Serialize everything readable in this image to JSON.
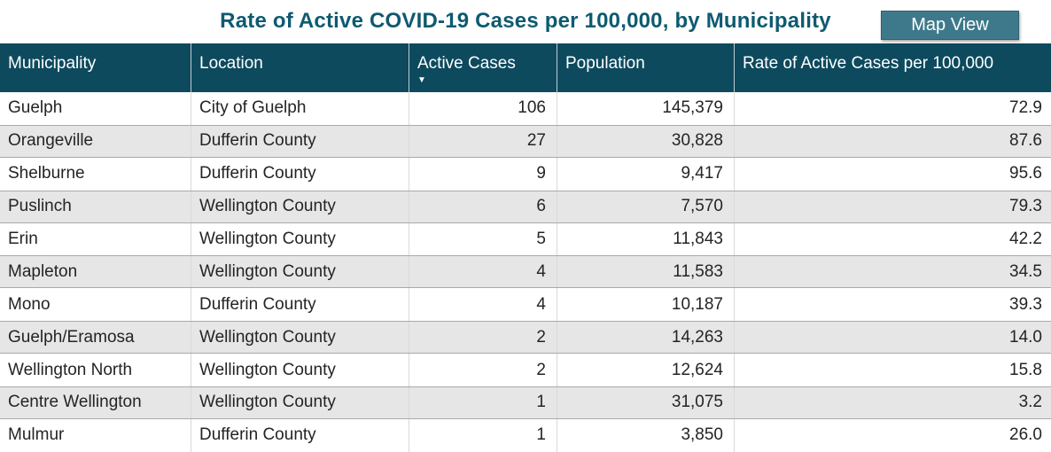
{
  "title": "Rate of Active COVID-19 Cases per 100,000, by Municipality",
  "map_view": {
    "label": "Map View"
  },
  "table": {
    "columns": [
      "Municipality",
      "Location",
      "Active Cases",
      "Population",
      "Rate of Active Cases per 100,000"
    ],
    "sorted_column": "Active Cases",
    "sort_direction": "descending",
    "sort_icon": "▼",
    "rows": [
      {
        "municipality": "Guelph",
        "location": "City of Guelph",
        "active_cases": "106",
        "population": "145,379",
        "rate": "72.9"
      },
      {
        "municipality": "Orangeville",
        "location": "Dufferin County",
        "active_cases": "27",
        "population": "30,828",
        "rate": "87.6"
      },
      {
        "municipality": "Shelburne",
        "location": "Dufferin County",
        "active_cases": "9",
        "population": "9,417",
        "rate": "95.6"
      },
      {
        "municipality": "Puslinch",
        "location": "Wellington County",
        "active_cases": "6",
        "population": "7,570",
        "rate": "79.3"
      },
      {
        "municipality": "Erin",
        "location": "Wellington County",
        "active_cases": "5",
        "population": "11,843",
        "rate": "42.2"
      },
      {
        "municipality": "Mapleton",
        "location": "Wellington County",
        "active_cases": "4",
        "population": "11,583",
        "rate": "34.5"
      },
      {
        "municipality": "Mono",
        "location": "Dufferin County",
        "active_cases": "4",
        "population": "10,187",
        "rate": "39.3"
      },
      {
        "municipality": "Guelph/Eramosa",
        "location": "Wellington County",
        "active_cases": "2",
        "population": "14,263",
        "rate": "14.0"
      },
      {
        "municipality": "Wellington North",
        "location": "Wellington County",
        "active_cases": "2",
        "population": "12,624",
        "rate": "15.8"
      },
      {
        "municipality": "Centre Wellington",
        "location": "Wellington County",
        "active_cases": "1",
        "population": "31,075",
        "rate": "3.2"
      },
      {
        "municipality": "Mulmur",
        "location": "Dufferin County",
        "active_cases": "1",
        "population": "3,850",
        "rate": "26.0"
      }
    ]
  },
  "colors": {
    "header_bg": "#0d4a5e",
    "header_text": "#ffffff",
    "title_text": "#0e5a70",
    "button_bg": "#3e798b",
    "button_border": "#2e606f",
    "button_text": "#ffffff",
    "row_alt_bg": "#e6e6e6",
    "row_border": "#a9a9a9",
    "col_separator": "#d9d9d9",
    "cell_text": "#252423",
    "canvas_bg": "#ffffff"
  },
  "chart_data": {
    "type": "table",
    "title": "Rate of Active COVID-19 Cases per 100,000, by Municipality",
    "columns": [
      "Municipality",
      "Location",
      "Active Cases",
      "Population",
      "Rate of Active Cases per 100,000"
    ],
    "sort": {
      "column": "Active Cases",
      "direction": "descending"
    },
    "rows": [
      [
        "Guelph",
        "City of Guelph",
        106,
        145379,
        72.9
      ],
      [
        "Orangeville",
        "Dufferin County",
        27,
        30828,
        87.6
      ],
      [
        "Shelburne",
        "Dufferin County",
        9,
        9417,
        95.6
      ],
      [
        "Puslinch",
        "Wellington County",
        6,
        7570,
        79.3
      ],
      [
        "Erin",
        "Wellington County",
        5,
        11843,
        42.2
      ],
      [
        "Mapleton",
        "Wellington County",
        4,
        11583,
        34.5
      ],
      [
        "Mono",
        "Dufferin County",
        4,
        10187,
        39.3
      ],
      [
        "Guelph/Eramosa",
        "Wellington County",
        2,
        14263,
        14.0
      ],
      [
        "Wellington North",
        "Wellington County",
        2,
        12624,
        15.8
      ],
      [
        "Centre Wellington",
        "Wellington County",
        1,
        31075,
        3.2
      ],
      [
        "Mulmur",
        "Dufferin County",
        1,
        3850,
        26.0
      ]
    ]
  }
}
